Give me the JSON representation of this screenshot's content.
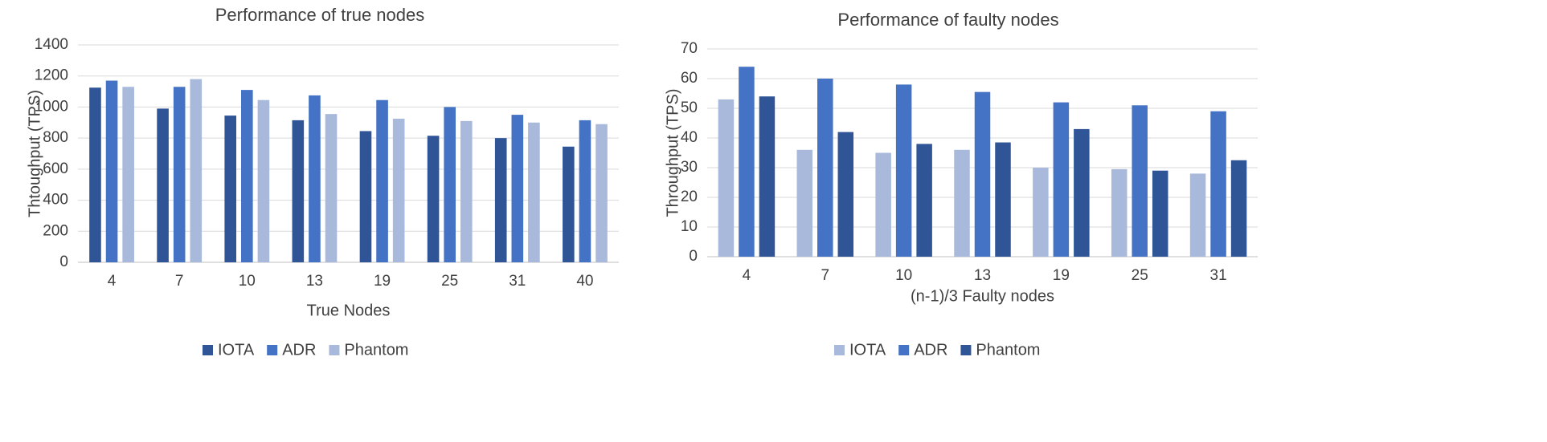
{
  "chart_data": [
    {
      "type": "bar",
      "title": "Performance of true nodes",
      "xlabel": "True Nodes",
      "ylabel": "Thtoughput (TPS)",
      "categories": [
        "4",
        "7",
        "10",
        "13",
        "19",
        "25",
        "31",
        "40"
      ],
      "ylim": [
        0,
        1400
      ],
      "yticks": [
        0,
        200,
        400,
        600,
        800,
        1000,
        1200,
        1400
      ],
      "grid": true,
      "legend_position": "bottom",
      "series": [
        {
          "name": "IOTA",
          "color": "#2f5597",
          "values": [
            1125,
            990,
            945,
            915,
            845,
            815,
            800,
            745
          ]
        },
        {
          "name": "ADR",
          "color": "#4472c4",
          "values": [
            1170,
            1130,
            1110,
            1075,
            1045,
            1000,
            950,
            915
          ]
        },
        {
          "name": "Phantom",
          "color": "#a9b9dc",
          "values": [
            1130,
            1180,
            1045,
            955,
            925,
            910,
            900,
            890
          ]
        }
      ]
    },
    {
      "type": "bar",
      "title": "Performance of faulty nodes",
      "xlabel": "(n-1)/3 Faulty nodes",
      "ylabel": "Throughput (TPS)",
      "categories": [
        "4",
        "7",
        "10",
        "13",
        "19",
        "25",
        "31"
      ],
      "ylim": [
        0,
        70
      ],
      "yticks": [
        0,
        10,
        20,
        30,
        40,
        50,
        60,
        70
      ],
      "grid": true,
      "legend_position": "bottom",
      "series": [
        {
          "name": "IOTA",
          "color": "#a9b9dc",
          "values": [
            53,
            36,
            35,
            36,
            30,
            29.5,
            28
          ]
        },
        {
          "name": "ADR",
          "color": "#4472c4",
          "values": [
            64,
            60,
            58,
            55.5,
            52,
            51,
            49
          ]
        },
        {
          "name": "Phantom",
          "color": "#2f5597",
          "values": [
            54,
            42,
            38,
            38.5,
            43,
            29,
            32.5
          ]
        }
      ]
    }
  ]
}
